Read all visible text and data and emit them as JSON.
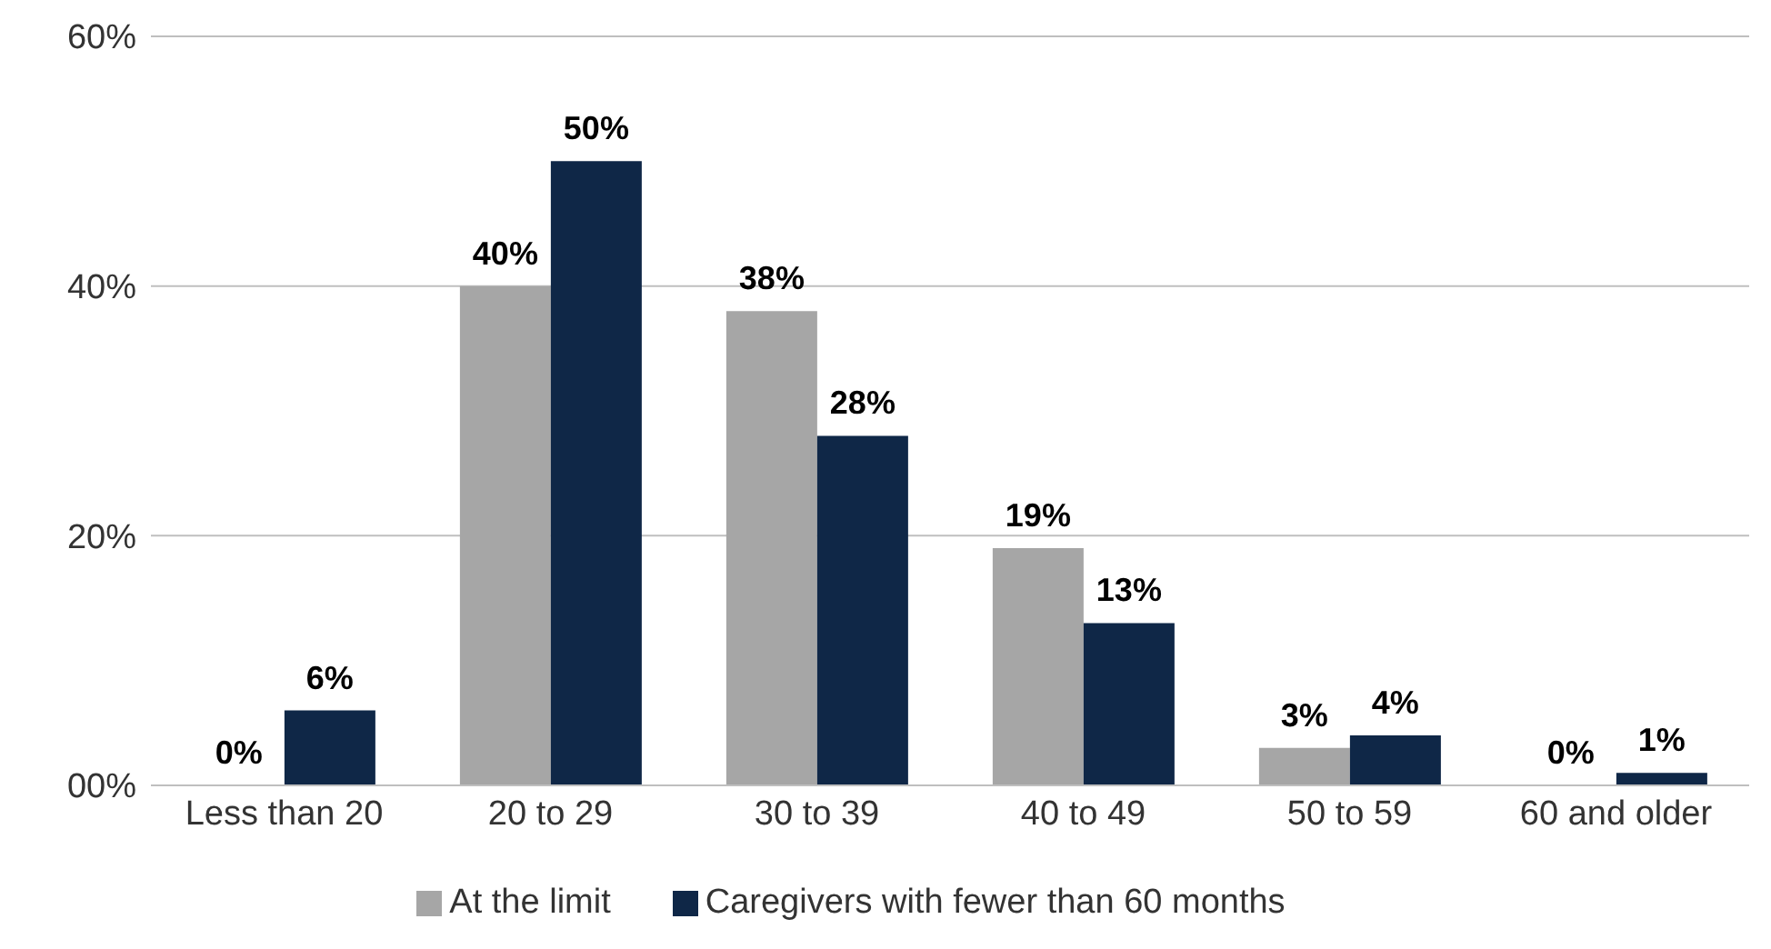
{
  "chart_data": {
    "type": "bar",
    "categories": [
      "Less than 20",
      "20 to 29",
      "30 to 39",
      "40 to 49",
      "50 to 59",
      "60 and older"
    ],
    "series": [
      {
        "name": "At the limit",
        "color": "#a6a6a6",
        "values": [
          0,
          40,
          38,
          19,
          3,
          0
        ],
        "value_labels": [
          "0%",
          "40%",
          "38%",
          "19%",
          "3%",
          "0%"
        ]
      },
      {
        "name": "Caregivers with fewer than 60 months",
        "color": "#0f2747",
        "values": [
          6,
          50,
          28,
          13,
          4,
          1
        ],
        "value_labels": [
          "6%",
          "50%",
          "28%",
          "13%",
          "4%",
          "1%"
        ]
      }
    ],
    "ylim": [
      0,
      60
    ],
    "yticks": [
      {
        "value": 0,
        "label": "00%"
      },
      {
        "value": 20,
        "label": "20%"
      },
      {
        "value": 40,
        "label": "40%"
      },
      {
        "value": 60,
        "label": "60%"
      }
    ],
    "grid": "y",
    "legend": "bottom"
  }
}
